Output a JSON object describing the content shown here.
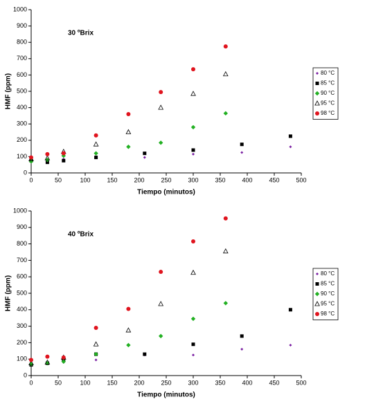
{
  "chart_data": [
    {
      "type": "scatter",
      "annotation": "30 ºBrix",
      "xlabel": "Tiempo (minutos)",
      "ylabel": "HMF (ppm)",
      "xlim": [
        0,
        500
      ],
      "ylim": [
        0,
        1000
      ],
      "xticks": [
        0,
        50,
        100,
        150,
        200,
        250,
        300,
        350,
        400,
        450,
        500
      ],
      "yticks": [
        0,
        100,
        200,
        300,
        400,
        500,
        600,
        700,
        800,
        900,
        1000
      ],
      "series": [
        {
          "name": "80 °C",
          "color": "#7a1fa2",
          "marker": "small-diamond",
          "x": [
            0,
            30,
            60,
            120,
            210,
            300,
            390,
            480
          ],
          "values": [
            80,
            70,
            85,
            100,
            95,
            115,
            125,
            160
          ]
        },
        {
          "name": "85 °C",
          "color": "#000000",
          "marker": "square",
          "x": [
            0,
            30,
            60,
            120,
            210,
            300,
            390,
            480
          ],
          "values": [
            75,
            65,
            75,
            95,
            120,
            140,
            175,
            225
          ]
        },
        {
          "name": "90 °C",
          "color": "#22b022",
          "marker": "diamond",
          "x": [
            0,
            30,
            60,
            120,
            180,
            240,
            300,
            360
          ],
          "values": [
            70,
            80,
            105,
            120,
            160,
            185,
            280,
            365
          ]
        },
        {
          "name": "95 °C",
          "color": "#000000",
          "marker": "triangle",
          "x": [
            0,
            30,
            60,
            120,
            180,
            240,
            300,
            360
          ],
          "values": [
            85,
            90,
            130,
            175,
            250,
            400,
            485,
            605
          ]
        },
        {
          "name": "98 °C",
          "color": "#e0141e",
          "marker": "circle",
          "x": [
            0,
            30,
            60,
            120,
            180,
            240,
            300,
            360
          ],
          "values": [
            95,
            115,
            120,
            230,
            360,
            495,
            635,
            775
          ]
        }
      ]
    },
    {
      "type": "scatter",
      "annotation": "40 ºBrix",
      "xlabel": "Tiempo (minutos)",
      "ylabel": "HMF (ppm)",
      "xlim": [
        0,
        500
      ],
      "ylim": [
        0,
        1000
      ],
      "xticks": [
        0,
        50,
        100,
        150,
        200,
        250,
        300,
        350,
        400,
        450,
        500
      ],
      "yticks": [
        0,
        100,
        200,
        300,
        400,
        500,
        600,
        700,
        800,
        900,
        1000
      ],
      "series": [
        {
          "name": "80 °C",
          "color": "#7a1fa2",
          "marker": "small-diamond",
          "x": [
            0,
            30,
            60,
            120,
            210,
            300,
            390,
            480
          ],
          "values": [
            65,
            75,
            80,
            95,
            125,
            125,
            160,
            185
          ]
        },
        {
          "name": "85 °C",
          "color": "#000000",
          "marker": "square",
          "x": [
            0,
            30,
            60,
            120,
            210,
            300,
            390,
            480
          ],
          "values": [
            65,
            75,
            95,
            130,
            130,
            190,
            240,
            400
          ]
        },
        {
          "name": "90 °C",
          "color": "#22b022",
          "marker": "diamond",
          "x": [
            0,
            30,
            60,
            120,
            180,
            240,
            300,
            360
          ],
          "values": [
            70,
            75,
            85,
            130,
            185,
            240,
            345,
            440
          ]
        },
        {
          "name": "95 °C",
          "color": "#000000",
          "marker": "triangle",
          "x": [
            0,
            30,
            60,
            120,
            180,
            240,
            300,
            360
          ],
          "values": [
            75,
            80,
            110,
            190,
            275,
            435,
            625,
            755
          ]
        },
        {
          "name": "98 °C",
          "color": "#e0141e",
          "marker": "circle",
          "x": [
            0,
            30,
            60,
            120,
            180,
            240,
            300,
            360
          ],
          "values": [
            95,
            115,
            110,
            290,
            405,
            630,
            815,
            955
          ]
        }
      ]
    }
  ]
}
